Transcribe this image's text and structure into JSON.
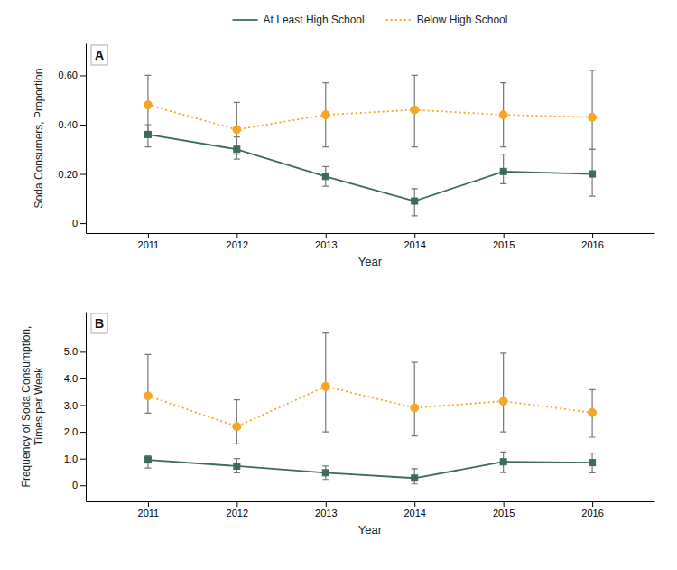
{
  "chart_data": [
    {
      "type": "line",
      "title": "A",
      "xlabel": "Year",
      "ylabel": "Soda Consumers, Proportion",
      "x": [
        2011,
        2012,
        2013,
        2014,
        2015,
        2016
      ],
      "xlim": [
        2010.3,
        2016.7
      ],
      "xticks": [
        2011,
        2012,
        2013,
        2014,
        2015,
        2016
      ],
      "ylim": [
        -0.04,
        0.73
      ],
      "yticks": [
        0,
        {
          "value": 0.2,
          "label": "0.20"
        },
        {
          "value": 0.4,
          "label": "0.40"
        },
        {
          "value": 0.6,
          "label": "0.60"
        }
      ],
      "legend": "top",
      "series": [
        {
          "name": "At Least High School",
          "color": "#3d6b5a",
          "line_style": "solid",
          "marker": "square",
          "values": [
            0.36,
            0.3,
            0.19,
            0.09,
            0.21,
            0.2
          ],
          "lower": [
            0.31,
            0.26,
            0.15,
            0.03,
            0.16,
            0.11
          ],
          "upper": [
            0.4,
            0.35,
            0.23,
            0.14,
            0.28,
            0.3
          ]
        },
        {
          "name": "Below High School",
          "color": "#f5a623",
          "line_style": "dotted",
          "marker": "circle",
          "values": [
            0.48,
            0.38,
            0.44,
            0.46,
            0.44,
            0.43
          ],
          "lower": [
            0.35,
            0.28,
            0.31,
            0.31,
            0.31,
            0.3
          ],
          "upper": [
            0.6,
            0.49,
            0.57,
            0.6,
            0.57,
            0.62
          ]
        }
      ]
    },
    {
      "type": "line",
      "title": "B",
      "xlabel": "Year",
      "ylabel": "Frequency of Soda Consumption,\nTimes per Week",
      "x": [
        2011,
        2012,
        2013,
        2014,
        2015,
        2016
      ],
      "xlim": [
        2010.3,
        2016.7
      ],
      "xticks": [
        2011,
        2012,
        2013,
        2014,
        2015,
        2016
      ],
      "ylim": [
        -0.6,
        6.5
      ],
      "yticks": [
        0,
        {
          "value": 1.0,
          "label": "1.0"
        },
        {
          "value": 2.0,
          "label": "2.0"
        },
        {
          "value": 3.0,
          "label": "3.0"
        },
        {
          "value": 4.0,
          "label": "4.0"
        },
        {
          "value": 5.0,
          "label": "5.0"
        }
      ],
      "series": [
        {
          "color": "#3d6b5a",
          "line_style": "solid",
          "marker": "square",
          "values": [
            0.95,
            0.72,
            0.47,
            0.27,
            0.88,
            0.85
          ],
          "lower": [
            0.65,
            0.47,
            0.22,
            0.05,
            0.48,
            0.47
          ],
          "upper": [
            1.1,
            1.0,
            0.72,
            0.62,
            1.25,
            1.2
          ]
        },
        {
          "color": "#f5a623",
          "line_style": "dotted",
          "marker": "circle",
          "values": [
            3.35,
            2.2,
            3.7,
            2.9,
            3.15,
            2.72
          ],
          "lower": [
            2.7,
            1.55,
            2.0,
            1.85,
            2.0,
            1.8
          ],
          "upper": [
            4.9,
            3.2,
            5.7,
            4.6,
            4.95,
            3.58
          ]
        }
      ]
    }
  ]
}
